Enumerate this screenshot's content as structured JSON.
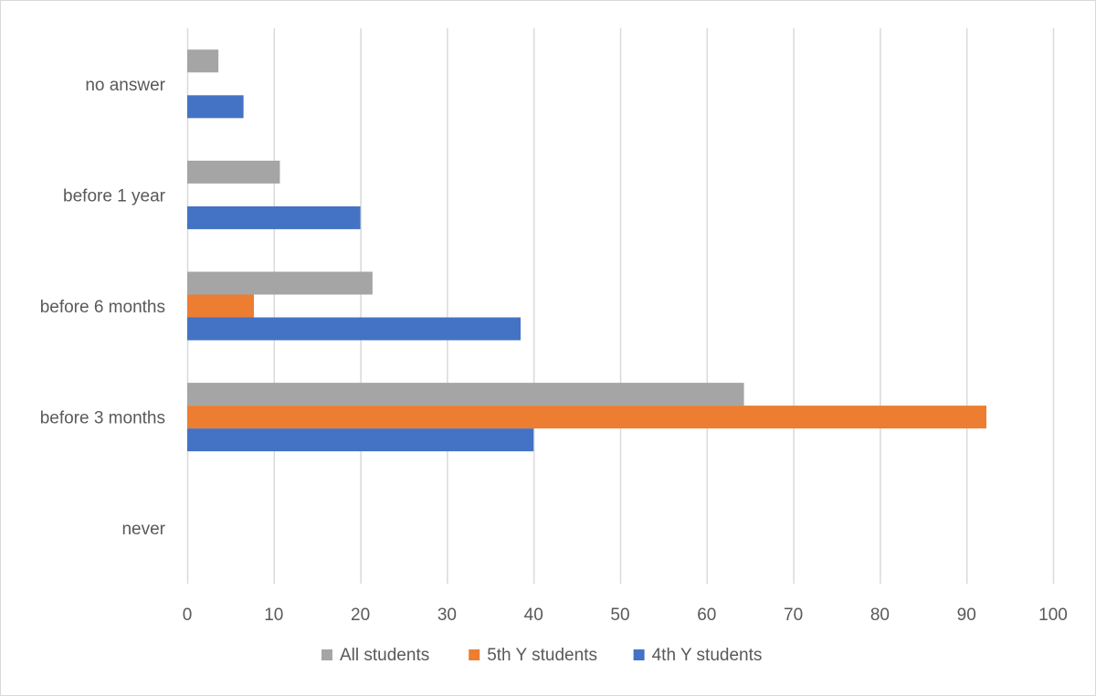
{
  "chart_data": {
    "type": "bar",
    "orientation": "horizontal",
    "title": "",
    "xlabel": "",
    "ylabel": "",
    "categories": [
      "never",
      "before 3 months",
      "before 6 months",
      "before 1 year",
      "no answer"
    ],
    "series": [
      {
        "name": "All students",
        "color": "#a5a5a5",
        "values": [
          0,
          64.3,
          21.4,
          10.7,
          3.6
        ]
      },
      {
        "name": "5th Y students",
        "color": "#ed7d31",
        "values": [
          0,
          92.3,
          7.7,
          0,
          0
        ]
      },
      {
        "name": "4th Y students",
        "color": "#4472c4",
        "values": [
          0,
          40,
          38.5,
          20,
          6.5
        ]
      }
    ],
    "xlim": [
      0,
      100
    ],
    "x_ticks": [
      "0",
      "10",
      "20",
      "30",
      "40",
      "50",
      "60",
      "70",
      "80",
      "90",
      "100"
    ],
    "grid": "vertical",
    "gridline_color": "#d9d9d9",
    "legend_position": "bottom"
  }
}
